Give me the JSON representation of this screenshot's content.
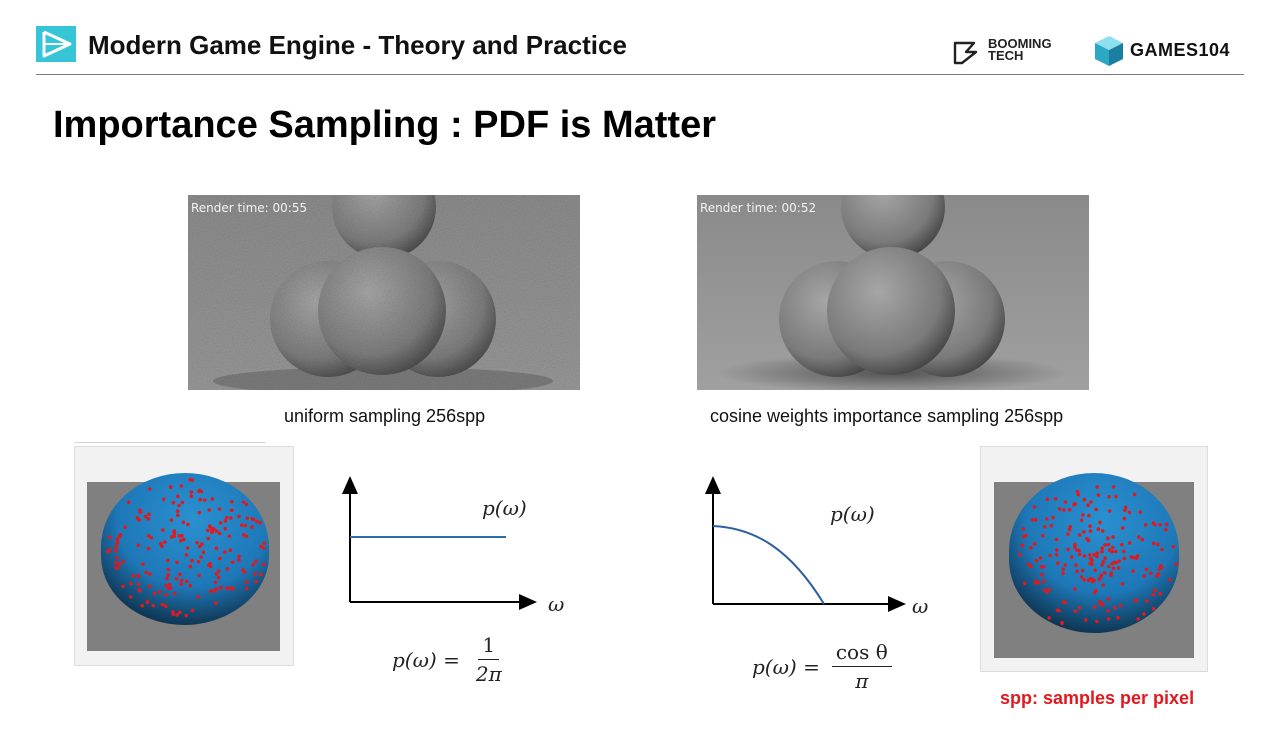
{
  "header": {
    "course_title": "Modern Game Engine - Theory and Practice",
    "brand_booming_line1": "BOOMING",
    "brand_booming_line2": "TECH",
    "brand_games": "GAMES104",
    "logo_icon": "play-triangle-icon",
    "accent_color": "#36c5d6"
  },
  "slide": {
    "title": "Importance Sampling : PDF is Matter"
  },
  "renders": [
    {
      "render_time": "Render time: 00:55",
      "caption": "uniform sampling 256spp",
      "noise": "high"
    },
    {
      "render_time": "Render time: 00:52",
      "caption": "cosine weights importance sampling 256spp",
      "noise": "low"
    }
  ],
  "plots": {
    "left": {
      "curve_label": "p(ω)",
      "axis_label": "ω",
      "formula_lhs": "p(ω) =",
      "formula_num": "1",
      "formula_den": "2π",
      "curve_type": "constant"
    },
    "right": {
      "curve_label": "p(ω)",
      "axis_label": "ω",
      "formula_lhs": "p(ω) =",
      "formula_num": "cos θ",
      "formula_den": "π",
      "curve_type": "cosine"
    }
  },
  "sample_spheres": {
    "sphere_color": "#1e7fc0",
    "dot_color": "#e0191e",
    "background_color": "#808080"
  },
  "note": {
    "spp": "spp: samples per pixel",
    "color": "#e0191e"
  }
}
